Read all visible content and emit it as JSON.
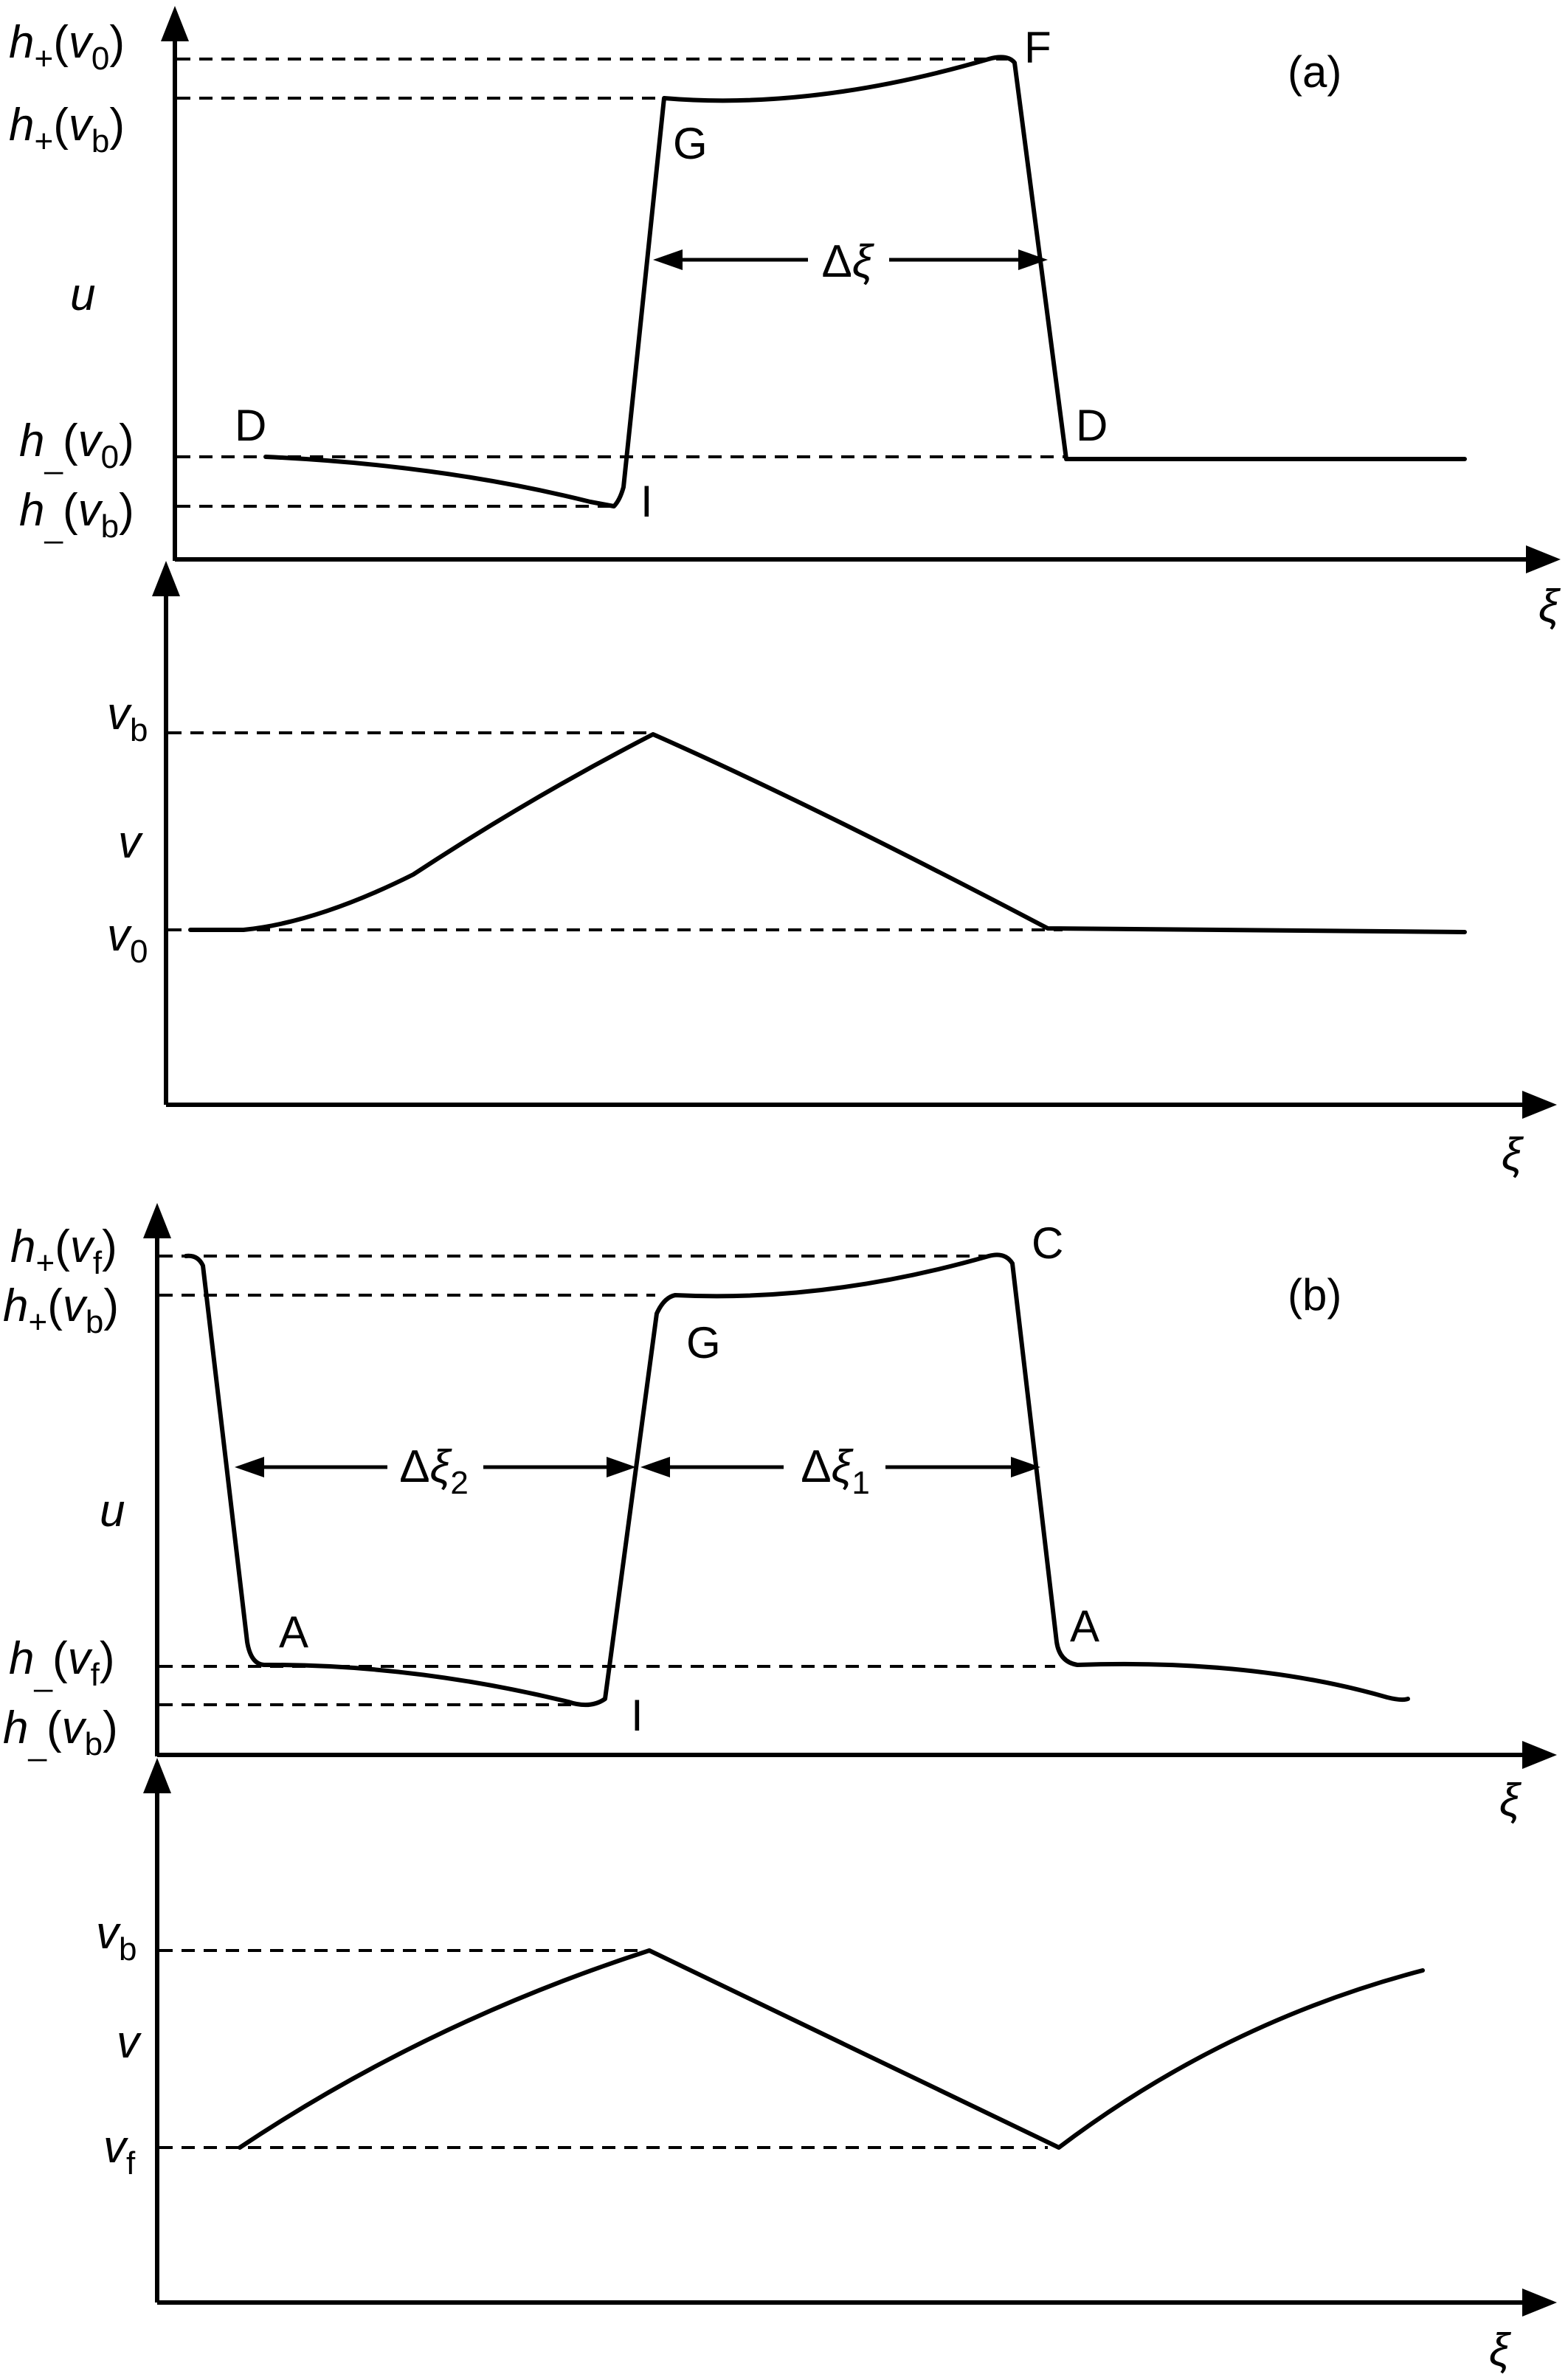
{
  "panel_a": {
    "tag": "(a)",
    "upper": {
      "y_axis_label": "u",
      "x_axis_label": "ξ",
      "levels": [
        {
          "base": "h",
          "sign": "+",
          "arg": "v",
          "arg_sub": "0"
        },
        {
          "base": "h",
          "sign": "+",
          "arg": "v",
          "arg_sub": "b"
        },
        {
          "base": "h",
          "sign": "_",
          "arg": "v",
          "arg_sub": "0"
        },
        {
          "base": "h",
          "sign": "_",
          "arg": "v",
          "arg_sub": "b"
        }
      ],
      "points": [
        "F",
        "G",
        "D",
        "D",
        "I"
      ],
      "gaps": [
        {
          "delta": "Δ",
          "var": "ξ",
          "sub": ""
        }
      ]
    },
    "lower": {
      "y_axis_label": "v",
      "x_axis_label": "ξ",
      "levels": [
        {
          "base": "v",
          "sub": "b"
        },
        {
          "base": "v",
          "sub": "0"
        }
      ]
    }
  },
  "panel_b": {
    "tag": "(b)",
    "upper": {
      "y_axis_label": "u",
      "x_axis_label": "ξ",
      "levels": [
        {
          "base": "h",
          "sign": "+",
          "arg": "v",
          "arg_sub": "f"
        },
        {
          "base": "h",
          "sign": "+",
          "arg": "v",
          "arg_sub": "b"
        },
        {
          "base": "h",
          "sign": "_",
          "arg": "v",
          "arg_sub": "f"
        },
        {
          "base": "h",
          "sign": "_",
          "arg": "v",
          "arg_sub": "b"
        }
      ],
      "points": [
        "C",
        "G",
        "A",
        "A",
        "I"
      ],
      "gaps": [
        {
          "delta": "Δ",
          "var": "ξ",
          "sub": "2"
        },
        {
          "delta": "Δ",
          "var": "ξ",
          "sub": "1"
        }
      ]
    },
    "lower": {
      "y_axis_label": "v",
      "x_axis_label": "ξ",
      "levels": [
        {
          "base": "v",
          "sub": "b"
        },
        {
          "base": "v",
          "sub": "f"
        }
      ]
    }
  }
}
